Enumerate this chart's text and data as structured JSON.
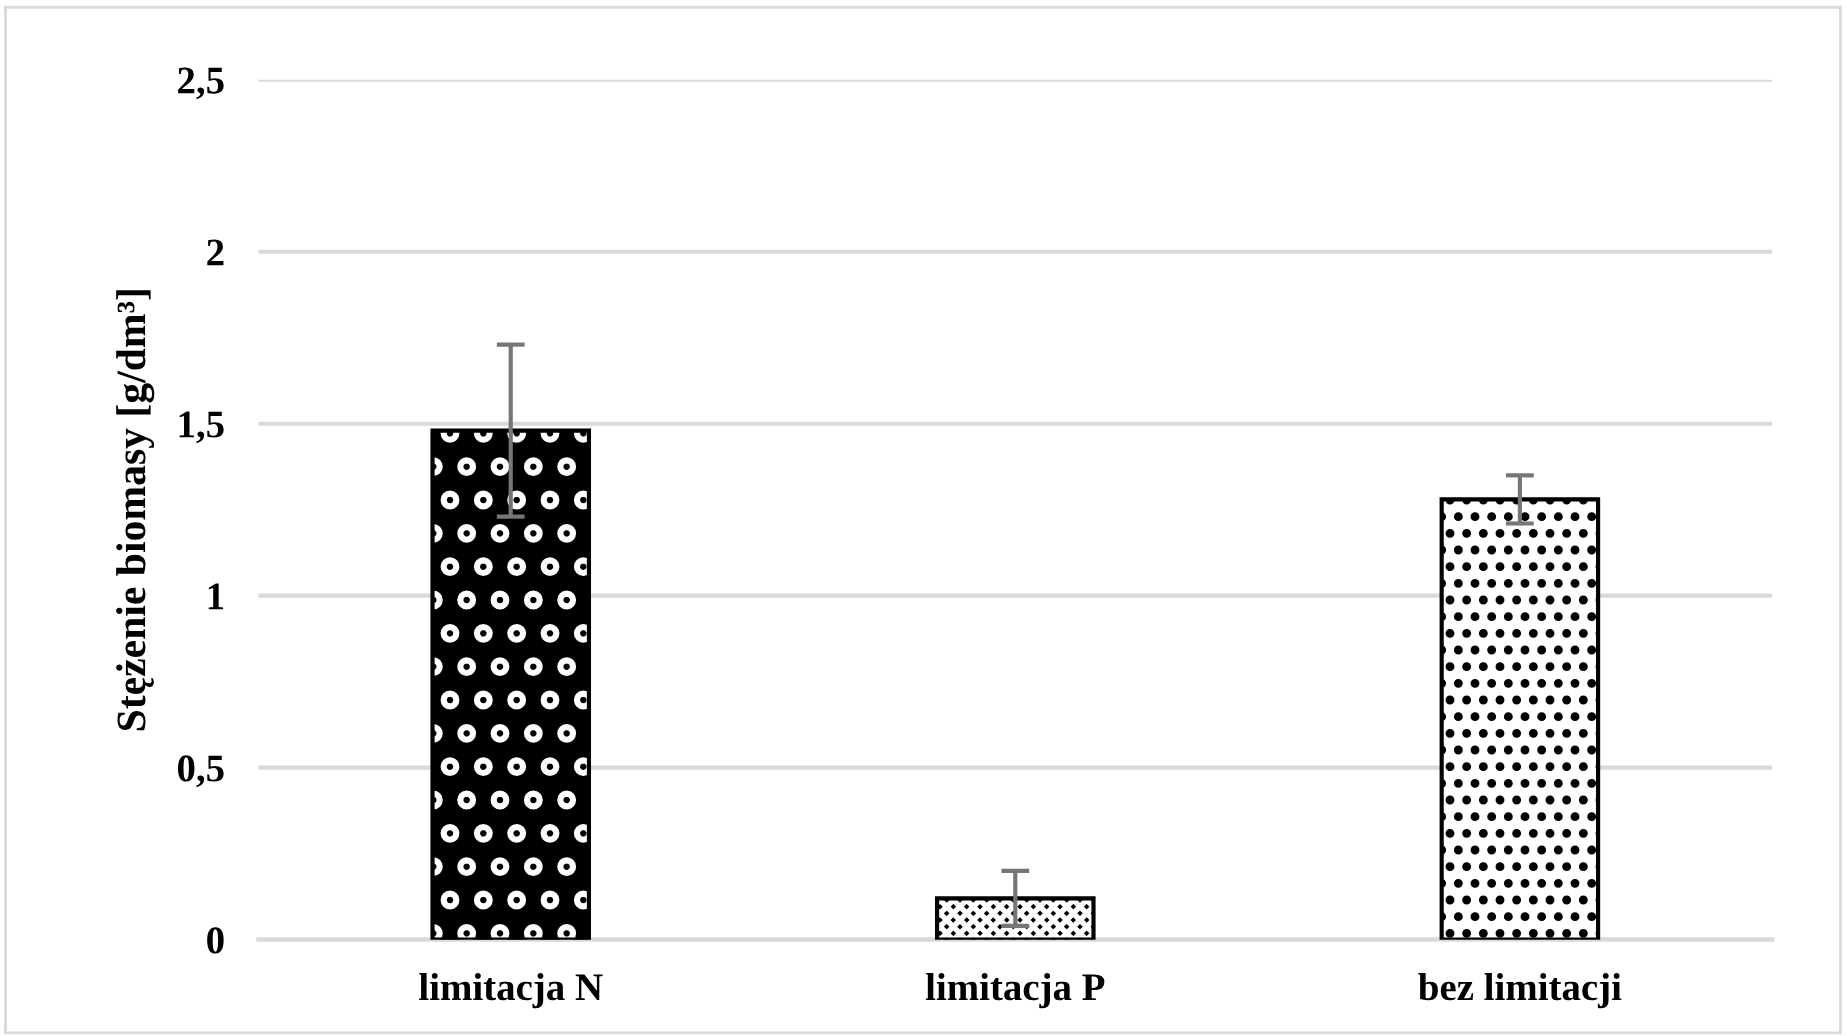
{
  "chart_data": {
    "type": "bar",
    "ylabel": "Stężenie biomasy [g/dm³]",
    "categories": [
      "limitacja N",
      "limitacja P",
      "bez limitacji"
    ],
    "values": [
      1.48,
      0.12,
      1.28
    ],
    "errors": [
      0.25,
      [
        0.04,
        0.2
      ],
      [
        1.21,
        1.35
      ]
    ],
    "colors": [
      "#000000",
      "#000000",
      "#ffffff"
    ],
    "ylim": [
      0,
      2.5
    ],
    "yticks": [
      0,
      {
        "value": 0.5,
        "label": "0,5"
      },
      1,
      {
        "value": 1.5,
        "label": "1,5"
      },
      2,
      {
        "value": 2.5,
        "label": "2,5"
      }
    ],
    "grid": "y"
  }
}
